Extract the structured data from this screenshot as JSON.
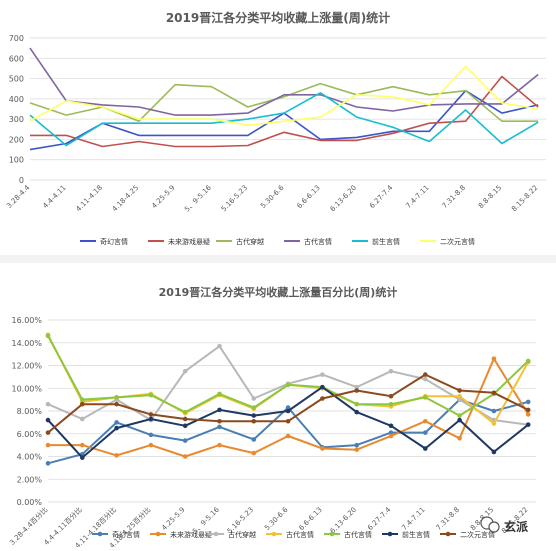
{
  "chart_data": [
    {
      "type": "line",
      "title": "2019晋江各分类平均收藏上涨量(周)统计",
      "categories": [
        "3.28-4.4",
        "4.4-4.11",
        "4.11-4.18",
        "4.18-4.25",
        "4.25-5.9",
        "5、9-5.16",
        "5.16-5.23",
        "5.30-6.6",
        "6.6-6.13",
        "6.13-6.20",
        "6.27-7.4",
        "7.4-7.11",
        "7.31-8.8",
        "8.8-8.15",
        "8.15-8.22"
      ],
      "ylim": [
        0,
        700
      ],
      "yticks": [
        0,
        100,
        200,
        300,
        400,
        500,
        600,
        700
      ],
      "grid": true,
      "legend_position": "bottom",
      "series": [
        {
          "name": "奇幻言情",
          "color": "#3b55c9",
          "values": [
            150,
            180,
            280,
            220,
            220,
            220,
            220,
            330,
            200,
            210,
            240,
            240,
            440,
            330,
            370
          ]
        },
        {
          "name": "未来游戏悬疑",
          "color": "#c0504d",
          "values": [
            220,
            220,
            165,
            190,
            165,
            165,
            170,
            235,
            195,
            195,
            230,
            280,
            290,
            510,
            360
          ]
        },
        {
          "name": "古代穿越",
          "color": "#9bbb59",
          "values": [
            380,
            320,
            360,
            290,
            470,
            460,
            360,
            410,
            475,
            420,
            460,
            420,
            440,
            290,
            290
          ]
        },
        {
          "name": "古代言情",
          "color": "#8064a2",
          "values": [
            650,
            390,
            370,
            360,
            320,
            320,
            330,
            420,
            420,
            360,
            340,
            370,
            375,
            375,
            520
          ]
        },
        {
          "name": "前生言情",
          "color": "#17becf",
          "values": [
            320,
            170,
            280,
            280,
            280,
            280,
            300,
            330,
            430,
            310,
            260,
            190,
            345,
            180,
            285
          ]
        },
        {
          "name": "二次元言情",
          "color": "#ffff66",
          "values": [
            290,
            390,
            360,
            300,
            300,
            300,
            270,
            290,
            310,
            420,
            410,
            370,
            560,
            380,
            350
          ]
        }
      ]
    },
    {
      "type": "line",
      "title": "2019晋江各分类平均收藏上涨量百分比(周)统计",
      "categories": [
        "3.28-4.4百分比",
        "4.4-4.11百分比",
        "4.11-4.18百分比",
        "4.18-4.25百分比",
        "4.25-5.9",
        "5、9-5.16",
        "5.16-5.23",
        "5.30-6.6",
        "6.6-6.13",
        "6.13-6.20",
        "6.27-7.4",
        "7.4-7.11",
        "7.31-8.8",
        "8.8-8.15",
        "8.15-8.22"
      ],
      "ylim": [
        0,
        16
      ],
      "yticks": [
        "0.00%",
        "2.00%",
        "4.00%",
        "6.00%",
        "8.00%",
        "10.00%",
        "12.00%",
        "14.00%",
        "16.00%"
      ],
      "grid": true,
      "legend_position": "bottom",
      "series": [
        {
          "name": "奇幻言情",
          "color": "#4a7fb5",
          "values": [
            3.4,
            4.2,
            7.0,
            5.9,
            5.4,
            6.6,
            5.5,
            8.3,
            4.8,
            5.0,
            6.1,
            6.1,
            9.0,
            8.0,
            8.8
          ]
        },
        {
          "name": "未来游戏悬疑",
          "color": "#e88a2e",
          "values": [
            5.0,
            5.0,
            4.1,
            5.0,
            4.0,
            5.0,
            4.3,
            5.8,
            4.7,
            4.6,
            5.8,
            7.1,
            5.6,
            12.6,
            7.7
          ]
        },
        {
          "name": "古代穿越",
          "color": "#b8b8b8",
          "values": [
            8.6,
            7.3,
            9.0,
            7.2,
            11.5,
            13.7,
            9.1,
            10.4,
            11.2,
            10.1,
            11.5,
            10.8,
            9.0,
            7.2,
            6.8
          ]
        },
        {
          "name": "古代言情",
          "color": "#f2c233",
          "values": [
            14.7,
            8.8,
            9.2,
            9.5,
            7.8,
            9.4,
            8.2,
            10.3,
            10.0,
            8.6,
            8.4,
            9.3,
            9.3,
            6.9,
            12.3
          ]
        },
        {
          "name": "古代言情",
          "color": "#8dc63f",
          "values": [
            14.6,
            9.0,
            9.2,
            9.4,
            7.9,
            9.5,
            8.3,
            10.3,
            10.1,
            8.6,
            8.6,
            9.2,
            7.6,
            9.5,
            12.4
          ]
        },
        {
          "name": "前生言情",
          "color": "#1f3864",
          "values": [
            7.2,
            3.9,
            6.5,
            7.3,
            6.7,
            8.1,
            7.6,
            8.0,
            10.1,
            7.9,
            6.7,
            4.7,
            7.2,
            4.4,
            6.8
          ]
        },
        {
          "name": "二次元言情",
          "color": "#8b4a1e",
          "values": [
            6.1,
            8.6,
            8.6,
            7.7,
            7.3,
            7.1,
            7.1,
            7.1,
            9.1,
            9.8,
            9.3,
            11.2,
            9.8,
            9.6,
            8.1
          ]
        }
      ]
    }
  ],
  "watermark": {
    "text": "玄派",
    "icon": "wechat-icon"
  }
}
